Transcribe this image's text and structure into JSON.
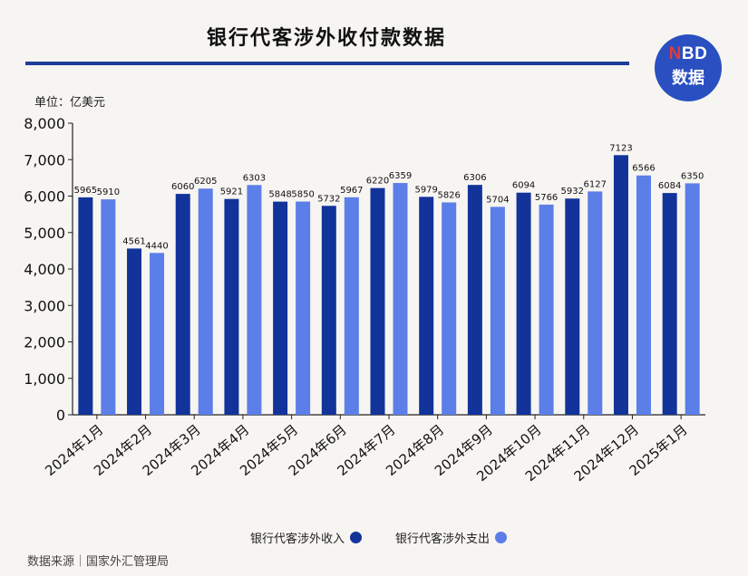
{
  "header": {
    "title": "银行代客涉外收付款数据"
  },
  "logo": {
    "line1_n": "N",
    "line1_rest": "BD",
    "line2": "数据"
  },
  "unit_label": "单位：亿美元",
  "source": "数据来源｜国家外汇管理局",
  "colors": {
    "income": "#12339a",
    "expense": "#5b7ee8",
    "axis": "#222222"
  },
  "chart_data": {
    "type": "bar",
    "title": "银行代客涉外收付款数据",
    "ylabel": "亿美元",
    "ylim": [
      0,
      8000
    ],
    "yticks": [
      0,
      1000,
      2000,
      3000,
      4000,
      5000,
      6000,
      7000,
      8000
    ],
    "ytick_labels": [
      "0",
      "1,000",
      "2,000",
      "3,000",
      "4,000",
      "5,000",
      "6,000",
      "7,000",
      "8,000"
    ],
    "categories": [
      "2024年1月",
      "2024年2月",
      "2024年3月",
      "2024年4月",
      "2024年5月",
      "2024年6月",
      "2024年7月",
      "2024年8月",
      "2024年9月",
      "2024年10月",
      "2024年11月",
      "2024年12月",
      "2025年1月"
    ],
    "series": [
      {
        "name": "银行代客涉外收入",
        "values": [
          5965,
          4561,
          6060,
          5921,
          5848,
          5732,
          6220,
          5979,
          6306,
          6094,
          5932,
          7123,
          6084
        ]
      },
      {
        "name": "银行代客涉外支出",
        "values": [
          5910,
          4440,
          6205,
          6303,
          5850,
          5967,
          6359,
          5826,
          5704,
          5766,
          6127,
          6566,
          6350
        ]
      }
    ]
  }
}
